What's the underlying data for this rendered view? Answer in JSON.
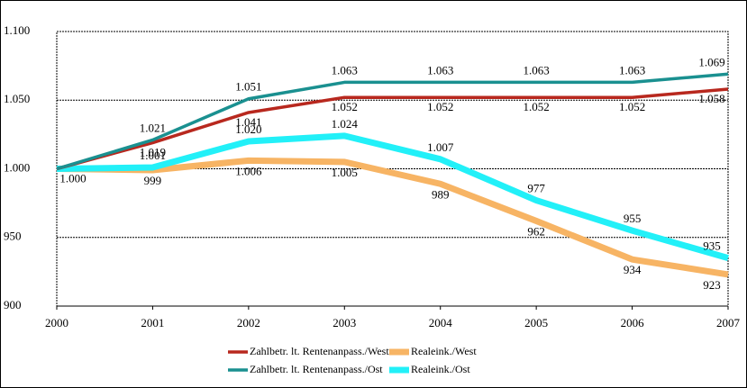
{
  "chart_data": {
    "type": "line",
    "categories": [
      "2000",
      "2001",
      "2002",
      "2003",
      "2004",
      "2005",
      "2006",
      "2007"
    ],
    "ylim": [
      900,
      1100
    ],
    "yticks": [
      900,
      950,
      {
        "value": 1000,
        "label": "1.000"
      },
      {
        "value": 1050,
        "label": "1.050"
      },
      {
        "value": 1100,
        "label": "1.100"
      }
    ],
    "grid": true,
    "legend": "bottom",
    "series": [
      {
        "name": "Zahlbetr. lt. Rentenanpass./West",
        "color": "#b8281e",
        "values": [
          1000,
          1019,
          1041,
          1052,
          1052,
          1052,
          1052,
          1058
        ],
        "value_labels": [
          "1.000",
          "1.019",
          "1.041",
          "1.052",
          "1.052",
          "1.052",
          "1.052",
          "1.058"
        ]
      },
      {
        "name": "Realeink./West",
        "color": "#f7b464",
        "values": [
          1000,
          999,
          1006,
          1005,
          989,
          962,
          934,
          923
        ],
        "value_labels": [
          null,
          "999",
          "1.006",
          "1.005",
          "989",
          "962",
          "934",
          "923"
        ]
      },
      {
        "name": "Zahlbetr. lt. Rentenanpass./Ost",
        "color": "#1a9090",
        "values": [
          1000,
          1021,
          1051,
          1063,
          1063,
          1063,
          1063,
          1069
        ],
        "value_labels": [
          null,
          "1.021",
          "1.051",
          "1.063",
          "1.063",
          "1.063",
          "1.063",
          "1.069"
        ]
      },
      {
        "name": "Realeink./Ost",
        "color": "#22f0f8",
        "values": [
          1000,
          1001,
          1020,
          1024,
          1007,
          977,
          955,
          935
        ],
        "value_labels": [
          null,
          "1.001",
          "1.020",
          "1.024",
          "1.007",
          "977",
          "955",
          "935"
        ]
      }
    ]
  }
}
